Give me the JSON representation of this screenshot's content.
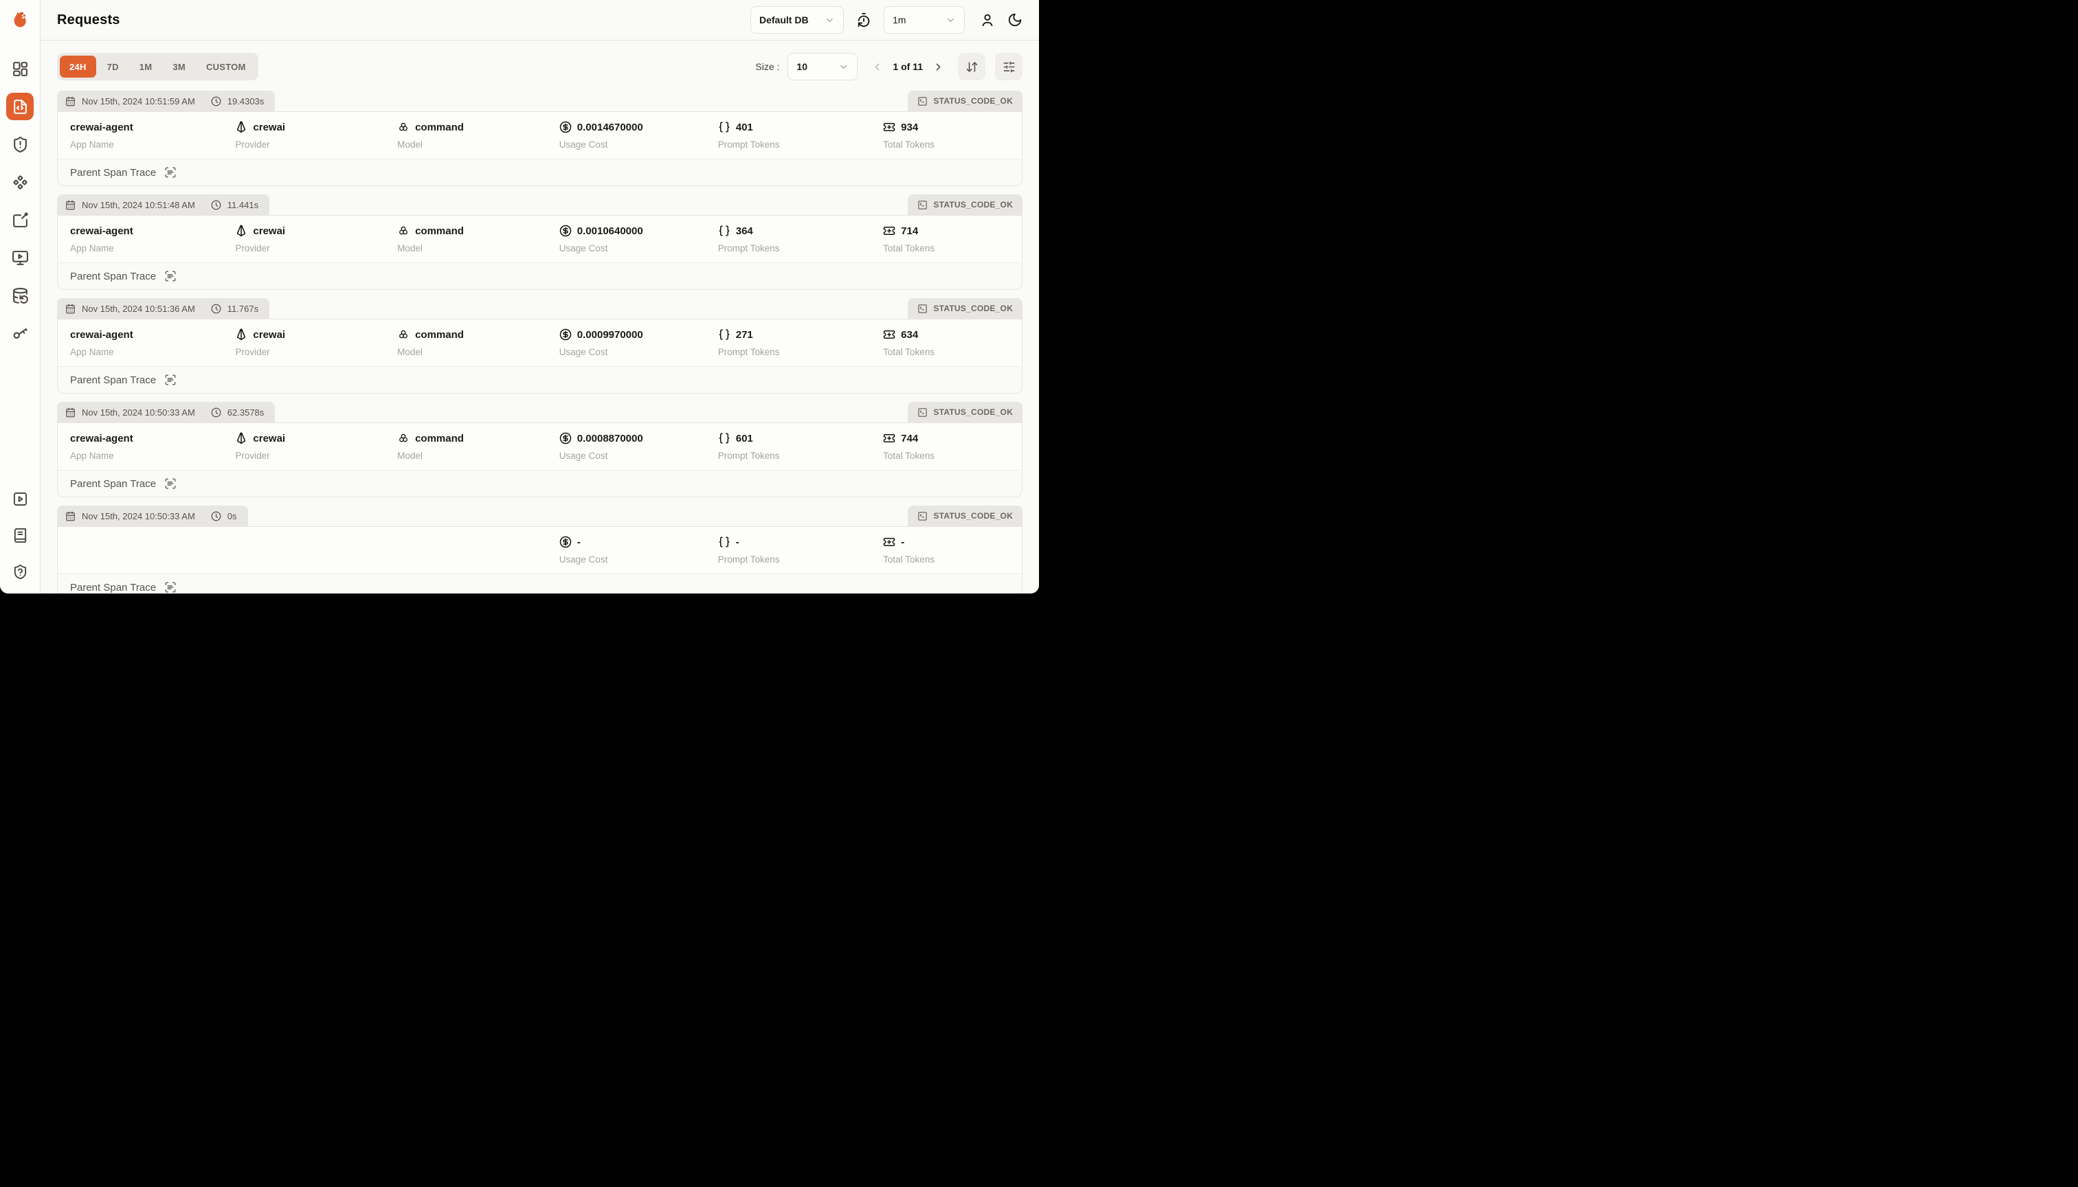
{
  "colors": {
    "accent": "#E0612E"
  },
  "sidebar": {
    "active_item": "requests",
    "items": [
      "dashboard-icon",
      "requests-icon",
      "exceptions-shield-alert-icon",
      "evaluations-diamonds-icon",
      "prompt-hub-edit-icon",
      "playground-monitor-play-icon",
      "database-config-icon",
      "api-keys-icon"
    ],
    "bottom_items": [
      "getting-started-play-icon",
      "documentation-book-icon",
      "support-shield-question-icon"
    ]
  },
  "header": {
    "title": "Requests",
    "database_selector": "Default DB",
    "refresh_interval": "1m",
    "icons": [
      "timer-reset-icon",
      "user-icon",
      "moon-icon"
    ]
  },
  "toolbar": {
    "time_ranges": [
      "24H",
      "7D",
      "1M",
      "3M",
      "CUSTOM"
    ],
    "active_time_range": "24H",
    "size_label": "Size :",
    "size_value": "10",
    "pagination": "1 of 11"
  },
  "card_labels": {
    "app_name": "App Name",
    "provider": "Provider",
    "model": "Model",
    "usage_cost": "Usage Cost",
    "prompt_tokens": "Prompt Tokens",
    "total_tokens": "Total Tokens",
    "parent_span_trace": "Parent Span Trace"
  },
  "requests": [
    {
      "timestamp": "Nov 15th, 2024 10:51:59 AM",
      "duration": "19.4303s",
      "status": "STATUS_CODE_OK",
      "app_name": "crewai-agent",
      "provider": "crewai",
      "model": "command",
      "usage_cost": "0.0014670000",
      "prompt_tokens": "401",
      "total_tokens": "934"
    },
    {
      "timestamp": "Nov 15th, 2024 10:51:48 AM",
      "duration": "11.441s",
      "status": "STATUS_CODE_OK",
      "app_name": "crewai-agent",
      "provider": "crewai",
      "model": "command",
      "usage_cost": "0.0010640000",
      "prompt_tokens": "364",
      "total_tokens": "714"
    },
    {
      "timestamp": "Nov 15th, 2024 10:51:36 AM",
      "duration": "11.767s",
      "status": "STATUS_CODE_OK",
      "app_name": "crewai-agent",
      "provider": "crewai",
      "model": "command",
      "usage_cost": "0.0009970000",
      "prompt_tokens": "271",
      "total_tokens": "634"
    },
    {
      "timestamp": "Nov 15th, 2024 10:50:33 AM",
      "duration": "62.3578s",
      "status": "STATUS_CODE_OK",
      "app_name": "crewai-agent",
      "provider": "crewai",
      "model": "command",
      "usage_cost": "0.0008870000",
      "prompt_tokens": "601",
      "total_tokens": "744"
    },
    {
      "timestamp": "Nov 15th, 2024 10:50:33 AM",
      "duration": "0s",
      "status": "STATUS_CODE_OK",
      "app_name": "",
      "provider": "",
      "model": "",
      "usage_cost": "-",
      "prompt_tokens": "-",
      "total_tokens": "-"
    }
  ]
}
